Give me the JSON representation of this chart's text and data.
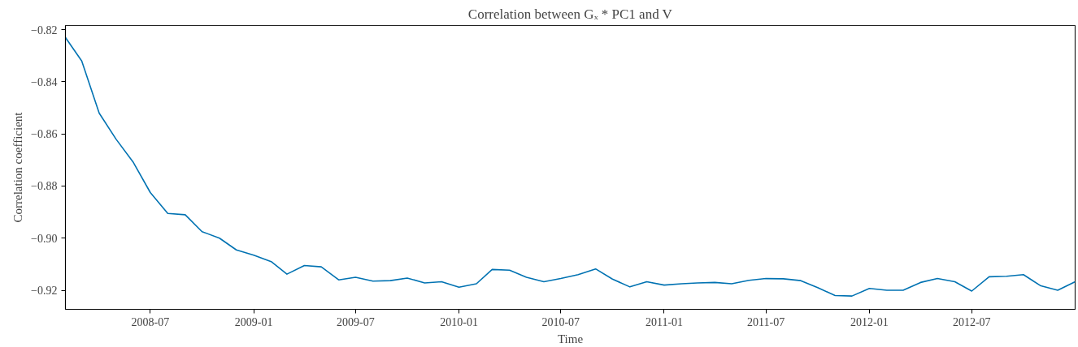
{
  "chart_data": {
    "type": "line",
    "title": "Correlation between Gₓ * PC1 and V",
    "xlabel": "Time",
    "ylabel": "Correlation coefficient",
    "x": [
      "2008-02",
      "2008-03",
      "2008-04",
      "2008-05",
      "2008-06",
      "2008-07",
      "2008-08",
      "2008-09",
      "2008-10",
      "2008-11",
      "2008-12",
      "2009-01",
      "2009-02",
      "2009-03",
      "2009-04",
      "2009-05",
      "2009-06",
      "2009-07",
      "2009-08",
      "2009-09",
      "2009-10",
      "2009-11",
      "2009-12",
      "2010-01",
      "2010-02",
      "2010-03",
      "2010-04",
      "2010-05",
      "2010-06",
      "2010-07",
      "2010-08",
      "2010-09",
      "2010-10",
      "2010-11",
      "2010-12",
      "2011-01",
      "2011-02",
      "2011-03",
      "2011-04",
      "2011-05",
      "2011-06",
      "2011-07",
      "2011-08",
      "2011-09",
      "2011-10",
      "2011-11",
      "2011-12",
      "2012-01",
      "2012-02",
      "2012-03",
      "2012-04",
      "2012-05",
      "2012-06",
      "2012-07",
      "2012-08",
      "2012-09",
      "2012-10",
      "2012-11",
      "2012-12",
      "2013-01"
    ],
    "series": [
      {
        "color": "#0072b2",
        "values": [
          -0.823,
          -0.832,
          -0.852,
          -0.862,
          -0.871,
          -0.8825,
          -0.8905,
          -0.891,
          -0.8975,
          -0.9,
          -0.9045,
          -0.9065,
          -0.909,
          -0.9138,
          -0.9105,
          -0.911,
          -0.916,
          -0.915,
          -0.9165,
          -0.9163,
          -0.9153,
          -0.9172,
          -0.9167,
          -0.9188,
          -0.9175,
          -0.912,
          -0.9123,
          -0.915,
          -0.9167,
          -0.9155,
          -0.914,
          -0.9118,
          -0.9157,
          -0.9187,
          -0.9167,
          -0.918,
          -0.9175,
          -0.9172,
          -0.917,
          -0.9175,
          -0.9162,
          -0.9155,
          -0.9156,
          -0.9163,
          -0.919,
          -0.922,
          -0.9222,
          -0.9193,
          -0.92,
          -0.92,
          -0.917,
          -0.9155,
          -0.9167,
          -0.9203,
          -0.9148,
          -0.9146,
          -0.914,
          -0.9183,
          -0.92,
          -0.9167
        ]
      }
    ],
    "xlim": [
      "2008-02",
      "2013-01"
    ],
    "xticks": [
      "2008-07",
      "2009-01",
      "2009-07",
      "2010-01",
      "2010-07",
      "2011-01",
      "2011-07",
      "2012-01",
      "2012-07"
    ],
    "ylim": [
      -0.9273,
      -0.8184
    ],
    "yticks": [
      {
        "value": -0.92,
        "label": "−0.92"
      },
      {
        "value": -0.9,
        "label": "−0.90"
      },
      {
        "value": -0.88,
        "label": "−0.88"
      },
      {
        "value": -0.86,
        "label": "−0.86"
      },
      {
        "value": -0.84,
        "label": "−0.84"
      },
      {
        "value": -0.82,
        "label": "−0.82"
      }
    ],
    "grid": false,
    "line_style": "solid",
    "marker": "none"
  }
}
